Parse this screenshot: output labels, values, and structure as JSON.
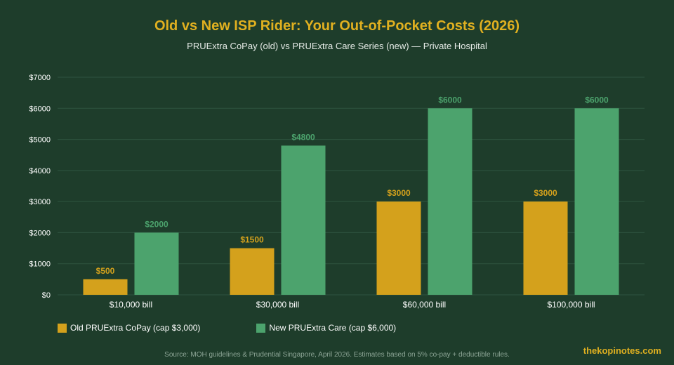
{
  "colors": {
    "background": "#1e3d2b",
    "old": "#d4a11c",
    "new": "#4ca36d",
    "title": "#e0b020",
    "grid": "#2f5440"
  },
  "source": "Source: MOH guidelines & Prudential Singapore, April 2026. Estimates based on 5% co-pay + deductible rules.",
  "brand": "thekopinotes.com",
  "chart_data": {
    "type": "bar",
    "title": "Old vs New ISP Rider: Your Out-of-Pocket Costs (2026)",
    "subtitle": "PRUExtra CoPay (old) vs PRUExtra Care Series (new) — Private Hospital",
    "categories": [
      "$10,000 bill",
      "$30,000 bill",
      "$60,000 bill",
      "$100,000 bill"
    ],
    "ylim": [
      0,
      7000
    ],
    "yticks": [
      0,
      1000,
      2000,
      3000,
      4000,
      5000,
      6000,
      7000
    ],
    "ytick_labels": [
      "$0",
      "$1000",
      "$2000",
      "$3000",
      "$4000",
      "$5000",
      "$6000",
      "$7000"
    ],
    "grid": true,
    "legend_position": "bottom-left",
    "series": [
      {
        "name": "Old PRUExtra CoPay (cap $3,000)",
        "values": [
          500,
          1500,
          3000,
          3000
        ],
        "labels": [
          "$500",
          "$1500",
          "$3000",
          "$3000"
        ]
      },
      {
        "name": "New PRUExtra Care (cap $6,000)",
        "values": [
          2000,
          4800,
          6000,
          6000
        ],
        "labels": [
          "$2000",
          "$4800",
          "$6000",
          "$6000"
        ]
      }
    ]
  }
}
